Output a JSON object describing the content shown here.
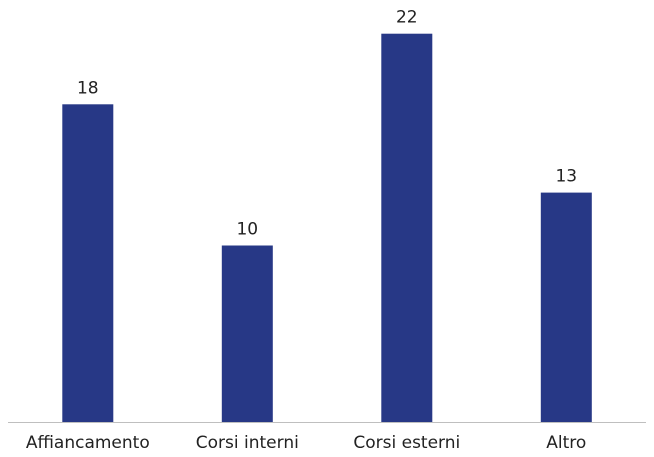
{
  "chart_data": {
    "type": "bar",
    "categories": [
      "Affiancamento",
      "Corsi interni",
      "Corsi esterni",
      "Altro"
    ],
    "values": [
      18,
      10,
      22,
      13
    ],
    "title": "",
    "xlabel": "",
    "ylabel": "",
    "ylim": [
      0,
      22.5
    ],
    "grid": false,
    "legend": "none",
    "data_labels": true,
    "colors": {
      "bar": "#273886",
      "axis": "#bfbfbf",
      "text": "#222222"
    }
  }
}
